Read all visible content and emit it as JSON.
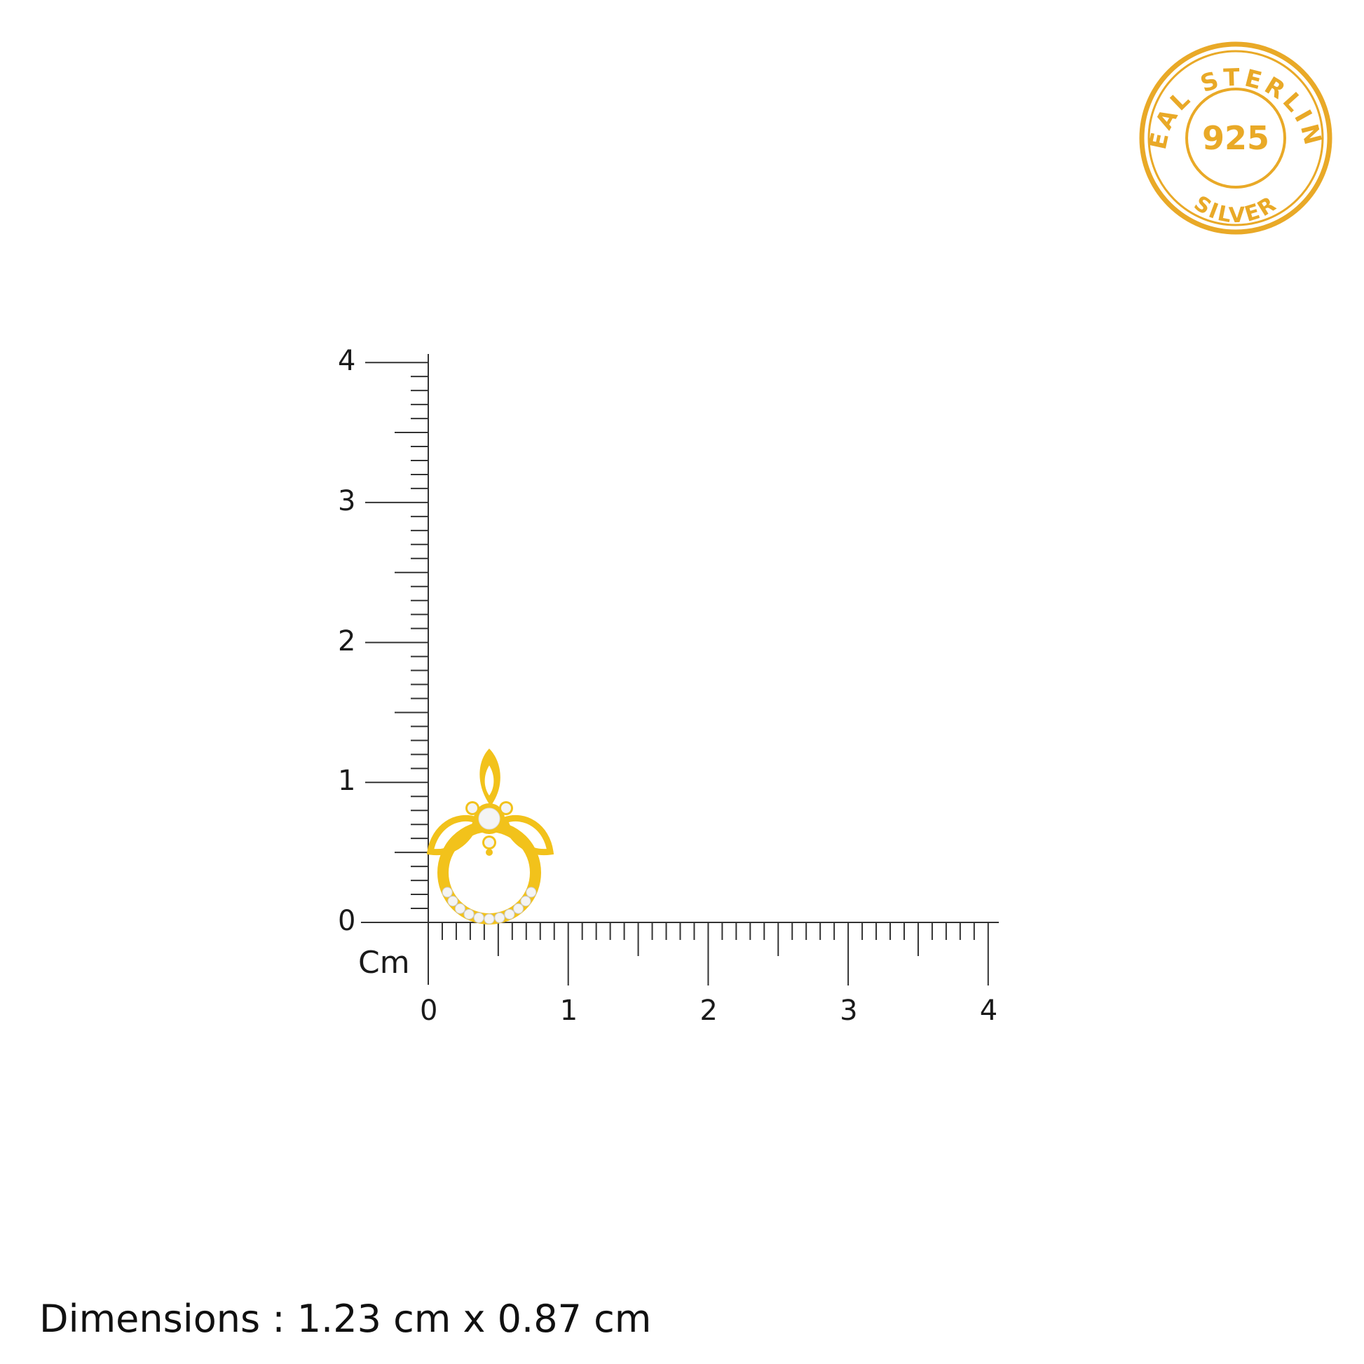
{
  "badge": {
    "top_text": "REAL STERLING",
    "center_text": "925",
    "bottom_text": "SILVER",
    "color": "#E9A927"
  },
  "ruler": {
    "unit_label": "Cm",
    "x_labels": [
      "0",
      "1",
      "2",
      "3",
      "4"
    ],
    "y_labels": [
      "0",
      "1",
      "2",
      "3",
      "4"
    ],
    "range_cm": [
      0,
      4
    ],
    "minor_step_cm": 0.1
  },
  "product": {
    "color": "#F2C21B",
    "stone_color": "#F4F4F4"
  },
  "dimensions": "Dimensions : 1.23 cm x 0.87 cm"
}
